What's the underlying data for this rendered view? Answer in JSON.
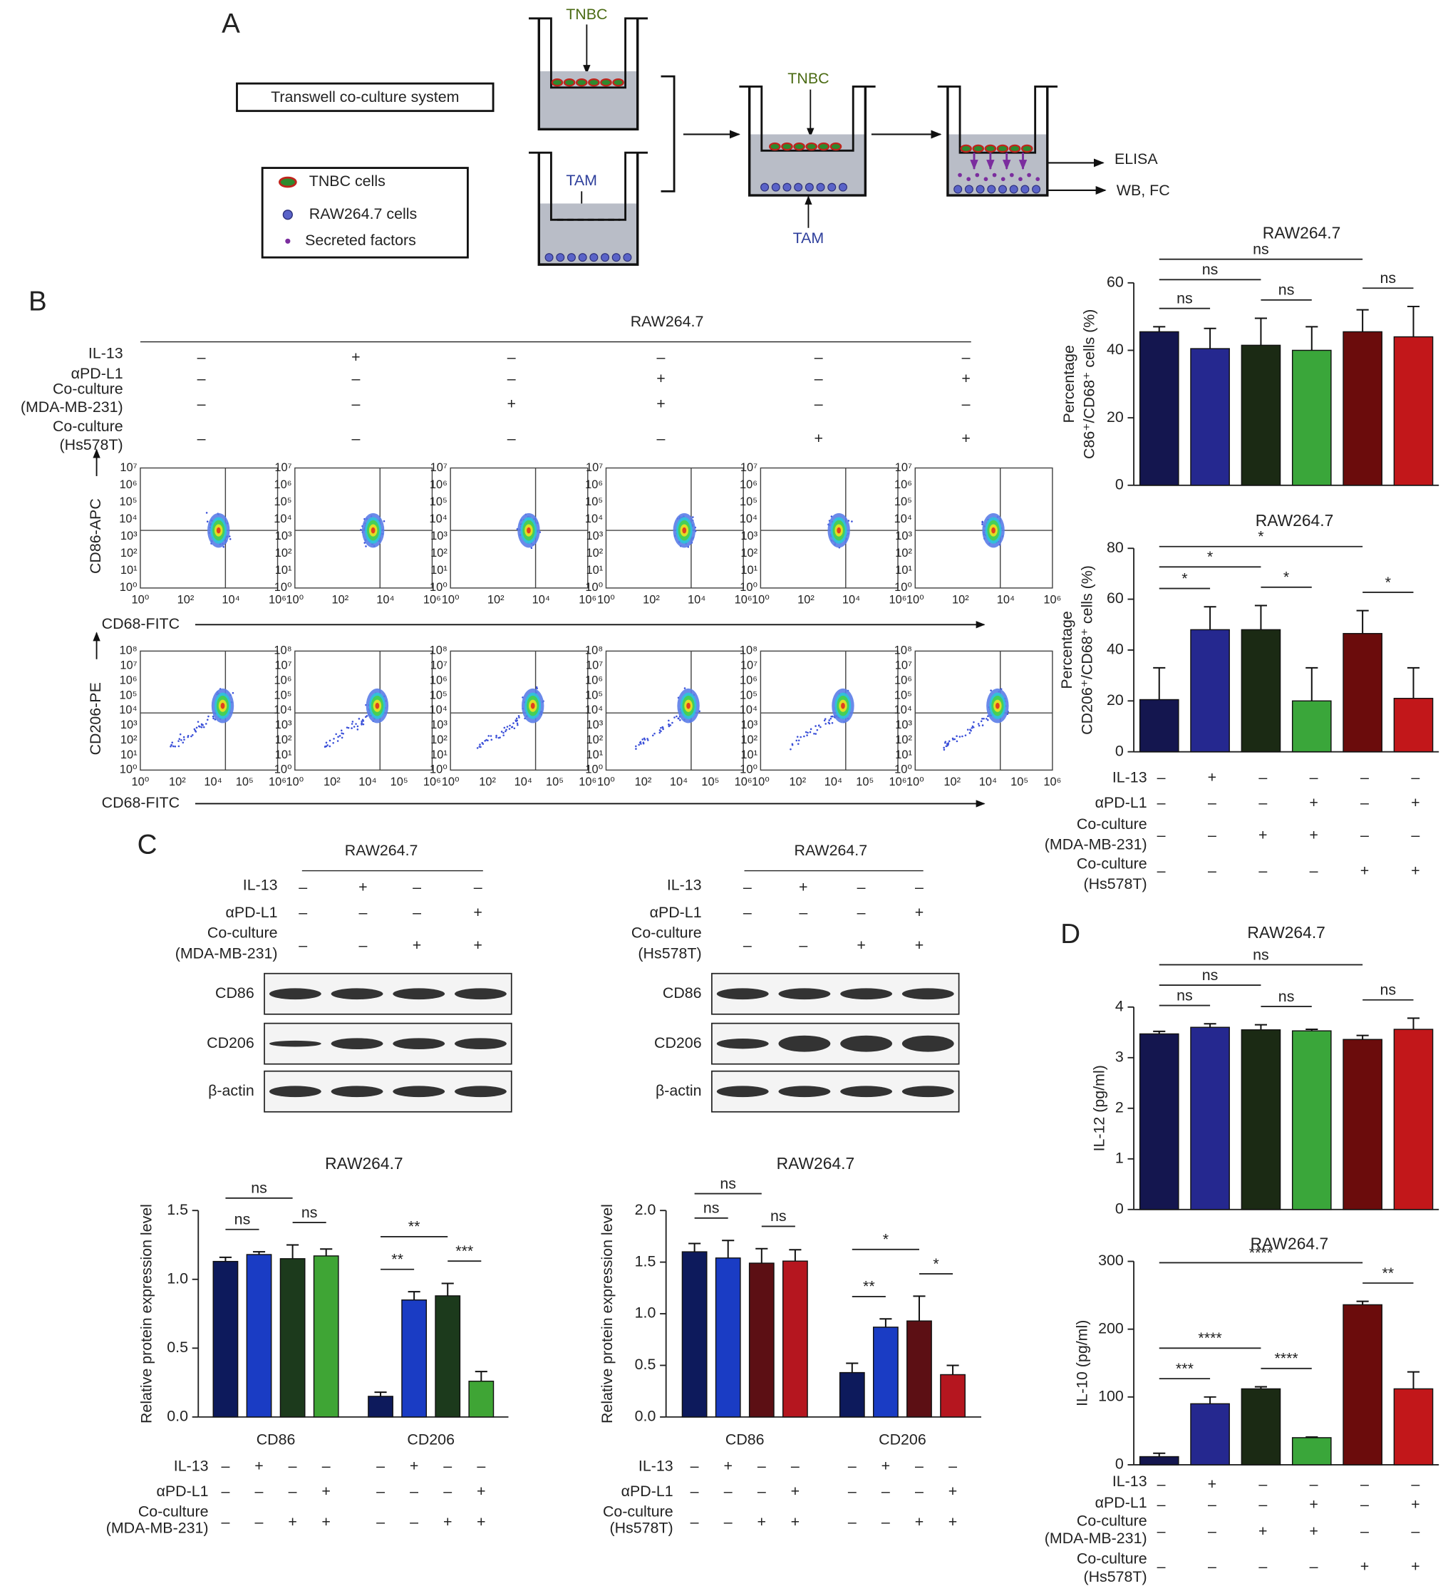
{
  "panel_labels": [
    "A",
    "B",
    "C",
    "D"
  ],
  "diagram": {
    "system": "Transwell co-culture system",
    "legend": [
      "TNBC cells",
      "RAW264.7 cells",
      "Secreted factors"
    ],
    "well1": "TNBC",
    "well2": "TAM",
    "combined_top": "TNBC",
    "combined_bottom": "TAM",
    "outputs": [
      "ELISA",
      "WB, FC"
    ]
  },
  "flow": {
    "header": "RAW264.7",
    "conditions": [
      {
        "label": [
          "IL-13"
        ],
        "signs": [
          "–",
          "+",
          "–",
          "–",
          "–",
          "–"
        ]
      },
      {
        "label": [
          "αPD-L1"
        ],
        "signs": [
          "–",
          "–",
          "–",
          "+",
          "–",
          "+"
        ]
      },
      {
        "label": [
          "Co-culture",
          "(MDA-MB-231)"
        ],
        "signs": [
          "–",
          "–",
          "+",
          "+",
          "–",
          "–"
        ]
      },
      {
        "label": [
          "Co-culture",
          "(Hs578T)"
        ],
        "signs": [
          "–",
          "–",
          "–",
          "–",
          "+",
          "+"
        ]
      }
    ],
    "rows": [
      {
        "y_label": "CD86-APC",
        "x_label": "CD68-FITC",
        "x_ticks": [
          "10⁰",
          "10²",
          "10⁴",
          "10⁶"
        ],
        "y_ticks": [
          "10⁰",
          "10¹",
          "10²",
          "10³",
          "10⁴",
          "10⁵",
          "10⁶",
          "10⁷"
        ]
      },
      {
        "y_label": "CD206-PE",
        "x_label": "CD68-FITC",
        "x_ticks": [
          "10⁰",
          "10²",
          "10⁴",
          "10⁵",
          "10⁶"
        ],
        "y_ticks": [
          "10⁰",
          "10¹",
          "10²",
          "10³",
          "10⁴",
          "10⁵",
          "10⁶",
          "10⁷",
          "10⁸"
        ]
      }
    ]
  },
  "blots": [
    {
      "header": "RAW264.7",
      "conditions": [
        {
          "label": [
            "IL-13"
          ],
          "signs": [
            "–",
            "+",
            "–",
            "–"
          ]
        },
        {
          "label": [
            "αPD-L1"
          ],
          "signs": [
            "–",
            "–",
            "–",
            "+"
          ]
        },
        {
          "label": [
            "Co-culture",
            "(MDA-MB-231)"
          ],
          "signs": [
            "–",
            "–",
            "+",
            "+"
          ]
        }
      ],
      "proteins": [
        "CD86",
        "CD206",
        "β-actin"
      ]
    },
    {
      "header": "RAW264.7",
      "conditions": [
        {
          "label": [
            "IL-13"
          ],
          "signs": [
            "–",
            "+",
            "–",
            "–"
          ]
        },
        {
          "label": [
            "αPD-L1"
          ],
          "signs": [
            "–",
            "–",
            "–",
            "+"
          ]
        },
        {
          "label": [
            "Co-culture",
            "(Hs578T)"
          ],
          "signs": [
            "–",
            "–",
            "+",
            "+"
          ]
        }
      ],
      "proteins": [
        "CD86",
        "CD206",
        "β-actin"
      ]
    }
  ],
  "chart_data": [
    {
      "type": "bar",
      "title": "RAW264.7",
      "y_label": [
        "Percentage",
        "C86⁺/CD68⁺ cells (%)"
      ],
      "values": [
        45.5,
        40.5,
        41.5,
        40,
        45.5,
        44
      ],
      "errors": [
        1.5,
        6,
        8,
        7,
        6.5,
        9
      ],
      "colors": [
        "#14164f",
        "#25288f",
        "#1b2a14",
        "#3aa63a",
        "#6b0c0c",
        "#c2171a"
      ],
      "ylim": [
        0,
        60
      ],
      "yticks": [
        0,
        20,
        40,
        60
      ],
      "comparisons": [
        {
          "bars": [
            0,
            4
          ],
          "label": "ns"
        },
        {
          "bars": [
            0,
            2
          ],
          "label": "ns"
        },
        {
          "bars": [
            0,
            1
          ],
          "label": "ns"
        },
        {
          "bars": [
            2,
            3
          ],
          "label": "ns"
        },
        {
          "bars": [
            4,
            5
          ],
          "label": "ns"
        }
      ]
    },
    {
      "type": "bar",
      "title": "RAW264.7",
      "y_label": [
        "Percentage",
        "CD206⁺/CD68⁺ cells (%)"
      ],
      "values": [
        20.5,
        48,
        48,
        20,
        46.5,
        21
      ],
      "errors": [
        12.5,
        9,
        9.5,
        13,
        9,
        12
      ],
      "colors": [
        "#14164f",
        "#25288f",
        "#1b2a14",
        "#3aa63a",
        "#6b0c0c",
        "#c2171a"
      ],
      "ylim": [
        0,
        80
      ],
      "yticks": [
        0,
        20,
        40,
        60,
        80
      ],
      "comparisons": [
        {
          "bars": [
            0,
            4
          ],
          "label": "*"
        },
        {
          "bars": [
            0,
            2
          ],
          "label": "*"
        },
        {
          "bars": [
            0,
            1
          ],
          "label": "*"
        },
        {
          "bars": [
            2,
            3
          ],
          "label": "*"
        },
        {
          "bars": [
            4,
            5
          ],
          "label": "*"
        }
      ],
      "conditions": [
        {
          "label": [
            "IL-13"
          ],
          "signs": [
            "–",
            "+",
            "–",
            "–",
            "–",
            "–"
          ]
        },
        {
          "label": [
            "αPD-L1"
          ],
          "signs": [
            "–",
            "–",
            "–",
            "+",
            "–",
            "+"
          ]
        },
        {
          "label": [
            "Co-culture",
            "(MDA-MB-231)"
          ],
          "signs": [
            "–",
            "–",
            "+",
            "+",
            "–",
            "–"
          ]
        },
        {
          "label": [
            "Co-culture",
            "(Hs578T)"
          ],
          "signs": [
            "–",
            "–",
            "–",
            "–",
            "+",
            "+"
          ]
        }
      ]
    },
    {
      "type": "grouped_bar",
      "title": "RAW264.7",
      "y_label": [
        "Relative protein expression level"
      ],
      "categories": [
        "CD86",
        "CD206"
      ],
      "series": [
        {
          "color": "#0d1a5c",
          "values": [
            1.13,
            0.15
          ],
          "errors": [
            0.03,
            0.03
          ]
        },
        {
          "color": "#1a3cc4",
          "values": [
            1.18,
            0.85
          ],
          "errors": [
            0.02,
            0.06
          ]
        },
        {
          "color": "#1c3a1c",
          "values": [
            1.15,
            0.88
          ],
          "errors": [
            0.1,
            0.09
          ]
        },
        {
          "color": "#3fa535",
          "values": [
            1.17,
            0.26
          ],
          "errors": [
            0.05,
            0.07
          ]
        }
      ],
      "ylim": [
        0,
        1.5
      ],
      "yticks": [
        {
          "value": 0,
          "label": "0.0"
        },
        0.5,
        {
          "value": 1,
          "label": "1.0"
        },
        1.5
      ],
      "comparisons": [
        {
          "category": 0,
          "bars": [
            0,
            2
          ],
          "label": "ns"
        },
        {
          "category": 0,
          "bars": [
            0,
            1
          ],
          "label": "ns"
        },
        {
          "category": 0,
          "bars": [
            2,
            3
          ],
          "label": "ns"
        },
        {
          "category": 1,
          "bars": [
            0,
            2
          ],
          "label": "**"
        },
        {
          "category": 1,
          "bars": [
            0,
            1
          ],
          "label": "**"
        },
        {
          "category": 1,
          "bars": [
            2,
            3
          ],
          "label": "***"
        }
      ],
      "conditions": [
        {
          "label": [
            "IL-13"
          ],
          "signs": [
            "–",
            "+",
            "–",
            "–",
            "–",
            "+",
            "–",
            "–"
          ]
        },
        {
          "label": [
            "αPD-L1"
          ],
          "signs": [
            "–",
            "–",
            "–",
            "+",
            "–",
            "–",
            "–",
            "+"
          ]
        },
        {
          "label": [
            "Co-culture",
            "(MDA-MB-231)"
          ],
          "signs": [
            "–",
            "–",
            "+",
            "+",
            "–",
            "–",
            "+",
            "+"
          ]
        }
      ]
    },
    {
      "type": "grouped_bar",
      "title": "RAW264.7",
      "y_label": [
        "Relative protein expression level"
      ],
      "categories": [
        "CD86",
        "CD206"
      ],
      "series": [
        {
          "color": "#0d1a5c",
          "values": [
            1.6,
            0.43
          ],
          "errors": [
            0.08,
            0.09
          ]
        },
        {
          "color": "#1a3cc4",
          "values": [
            1.54,
            0.87
          ],
          "errors": [
            0.17,
            0.08
          ]
        },
        {
          "color": "#5c0f14",
          "values": [
            1.49,
            0.93
          ],
          "errors": [
            0.14,
            0.24
          ]
        },
        {
          "color": "#b5161f",
          "values": [
            1.51,
            0.41
          ],
          "errors": [
            0.11,
            0.09
          ]
        }
      ],
      "ylim": [
        0,
        2
      ],
      "yticks": [
        {
          "value": 0,
          "label": "0.0"
        },
        0.5,
        {
          "value": 1,
          "label": "1.0"
        },
        1.5,
        {
          "value": 2,
          "label": "2.0"
        }
      ],
      "comparisons": [
        {
          "category": 0,
          "bars": [
            0,
            2
          ],
          "label": "ns"
        },
        {
          "category": 0,
          "bars": [
            0,
            1
          ],
          "label": "ns"
        },
        {
          "category": 0,
          "bars": [
            2,
            3
          ],
          "label": "ns"
        },
        {
          "category": 1,
          "bars": [
            0,
            2
          ],
          "label": "*"
        },
        {
          "category": 1,
          "bars": [
            0,
            1
          ],
          "label": "**"
        },
        {
          "category": 1,
          "bars": [
            2,
            3
          ],
          "label": "*"
        }
      ],
      "conditions": [
        {
          "label": [
            "IL-13"
          ],
          "signs": [
            "–",
            "+",
            "–",
            "–",
            "–",
            "+",
            "–",
            "–"
          ]
        },
        {
          "label": [
            "αPD-L1"
          ],
          "signs": [
            "–",
            "–",
            "–",
            "+",
            "–",
            "–",
            "–",
            "+"
          ]
        },
        {
          "label": [
            "Co-culture",
            "(Hs578T)"
          ],
          "signs": [
            "–",
            "–",
            "+",
            "+",
            "–",
            "–",
            "+",
            "+"
          ]
        }
      ]
    },
    {
      "type": "bar",
      "title": "RAW264.7",
      "y_label": [
        "IL-12 (pg/ml)"
      ],
      "values": [
        3.47,
        3.6,
        3.55,
        3.53,
        3.36,
        3.56
      ],
      "errors": [
        0.05,
        0.07,
        0.1,
        0.03,
        0.08,
        0.22
      ],
      "colors": [
        "#14164f",
        "#25288f",
        "#1b2a14",
        "#3aa63a",
        "#6b0c0c",
        "#c2171a"
      ],
      "ylim": [
        0,
        4
      ],
      "yticks": [
        0,
        1,
        2,
        3,
        4
      ],
      "comparisons": [
        {
          "bars": [
            0,
            4
          ],
          "label": "ns"
        },
        {
          "bars": [
            0,
            2
          ],
          "label": "ns"
        },
        {
          "bars": [
            0,
            1
          ],
          "label": "ns"
        },
        {
          "bars": [
            2,
            3
          ],
          "label": "ns"
        },
        {
          "bars": [
            4,
            5
          ],
          "label": "ns"
        }
      ]
    },
    {
      "type": "bar",
      "title": "RAW264.7",
      "y_label": [
        "IL-10 (pg/ml)"
      ],
      "values": [
        12,
        90,
        112,
        40,
        236,
        112
      ],
      "errors": [
        5,
        10,
        3,
        1,
        5,
        25
      ],
      "colors": [
        "#14164f",
        "#25288f",
        "#1b2a14",
        "#3aa63a",
        "#6b0c0c",
        "#c2171a"
      ],
      "ylim": [
        0,
        300
      ],
      "yticks": [
        0,
        100,
        200,
        300
      ],
      "comparisons": [
        {
          "bars": [
            0,
            4
          ],
          "label": "****"
        },
        {
          "bars": [
            4,
            5
          ],
          "label": "**"
        },
        {
          "bars": [
            0,
            1
          ],
          "label": "***"
        },
        {
          "bars": [
            0,
            2
          ],
          "label": "****"
        },
        {
          "bars": [
            2,
            3
          ],
          "label": "****"
        }
      ],
      "conditions": [
        {
          "label": [
            "IL-13"
          ],
          "signs": [
            "–",
            "+",
            "–",
            "–",
            "–",
            "–"
          ]
        },
        {
          "label": [
            "αPD-L1"
          ],
          "signs": [
            "–",
            "–",
            "–",
            "+",
            "–",
            "+"
          ]
        },
        {
          "label": [
            "Co-culture",
            "(MDA-MB-231)"
          ],
          "signs": [
            "–",
            "–",
            "+",
            "+",
            "–",
            "–"
          ]
        },
        {
          "label": [
            "Co-culture",
            "(Hs578T)"
          ],
          "signs": [
            "–",
            "–",
            "–",
            "–",
            "+",
            "+"
          ]
        }
      ]
    }
  ]
}
